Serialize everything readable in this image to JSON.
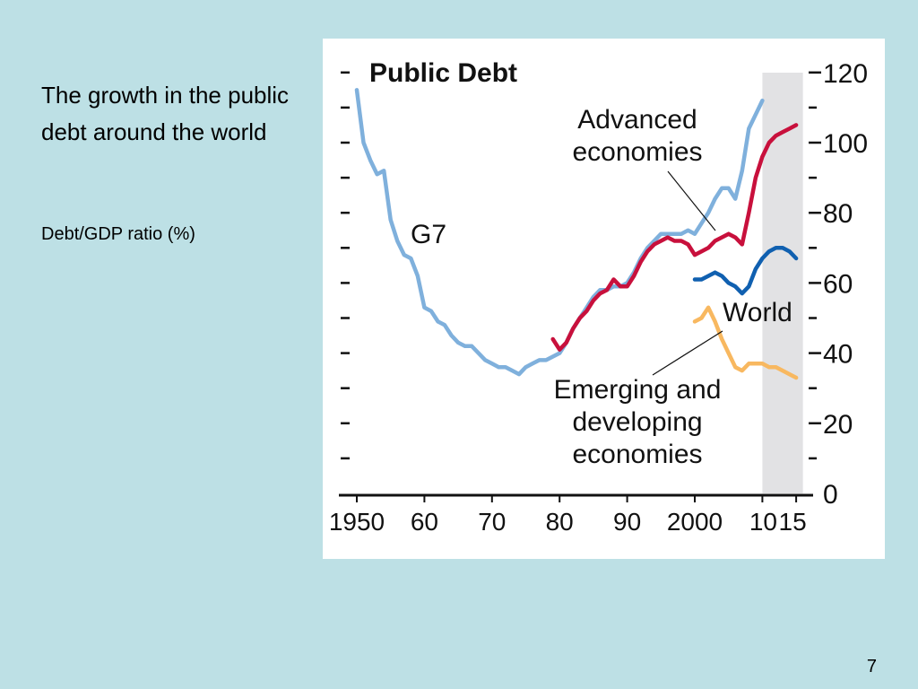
{
  "slide": {
    "title": "The growth in the public debt around the world",
    "subtitle": "Debt/GDP ratio (%)",
    "page_number": "7"
  },
  "chart_data": {
    "type": "line",
    "title": "Public Debt",
    "xlabel": "",
    "ylabel": "",
    "xlim": [
      1950,
      2015
    ],
    "ylim": [
      0,
      120
    ],
    "x_tick_values": [
      1950,
      1960,
      1970,
      1980,
      1990,
      2000,
      2010,
      2015
    ],
    "x_tick_labels": [
      "1950",
      "60",
      "70",
      "80",
      "90",
      "2000",
      "10",
      "15"
    ],
    "y_tick_values": [
      0,
      20,
      40,
      60,
      80,
      100,
      120
    ],
    "y_tick_labels": [
      "0",
      "20",
      "40",
      "60",
      "80",
      "100",
      "120"
    ],
    "y_axis_side": "right",
    "grid": false,
    "projection_shading": {
      "from": 2010,
      "to": 2016,
      "color": "#e2e2e4"
    },
    "series": [
      {
        "name": "G7",
        "color": "#7fb0dc",
        "x": [
          1950,
          1951,
          1952,
          1953,
          1954,
          1955,
          1956,
          1957,
          1958,
          1959,
          1960,
          1961,
          1962,
          1963,
          1964,
          1965,
          1966,
          1967,
          1968,
          1969,
          1970,
          1971,
          1972,
          1973,
          1974,
          1975,
          1976,
          1977,
          1978,
          1979,
          1980,
          1981,
          1982,
          1983,
          1984,
          1985,
          1986,
          1987,
          1988,
          1989,
          1990,
          1991,
          1992,
          1993,
          1994,
          1995,
          1996,
          1997,
          1998,
          1999,
          2000,
          2001,
          2002,
          2003,
          2004,
          2005,
          2006,
          2007,
          2008,
          2009,
          2010
        ],
        "values": [
          115,
          100,
          95,
          91,
          92,
          78,
          72,
          68,
          67,
          62,
          53,
          52,
          49,
          48,
          45,
          43,
          42,
          42,
          40,
          38,
          37,
          36,
          36,
          35,
          34,
          36,
          37,
          38,
          38,
          39,
          40,
          43,
          47,
          50,
          53,
          56,
          58,
          58,
          59,
          59,
          60,
          63,
          67,
          70,
          72,
          74,
          74,
          74,
          74,
          75,
          74,
          77,
          80,
          84,
          87,
          87,
          84,
          92,
          104,
          108,
          112
        ]
      },
      {
        "name": "Advanced economies",
        "color": "#c8103c",
        "x": [
          1979,
          1980,
          1981,
          1982,
          1983,
          1984,
          1985,
          1986,
          1987,
          1988,
          1989,
          1990,
          1991,
          1992,
          1993,
          1994,
          1995,
          1996,
          1997,
          1998,
          1999,
          2000,
          2001,
          2002,
          2003,
          2004,
          2005,
          2006,
          2007,
          2008,
          2009,
          2010,
          2011,
          2012,
          2013,
          2014,
          2015
        ],
        "values": [
          44,
          41,
          43,
          47,
          50,
          52,
          55,
          57,
          58,
          61,
          59,
          59,
          62,
          66,
          69,
          71,
          72,
          73,
          72,
          72,
          71,
          68,
          69,
          70,
          72,
          73,
          74,
          73,
          71,
          80,
          90,
          96,
          100,
          102,
          103,
          104,
          105
        ]
      },
      {
        "name": "World",
        "color": "#1060b0",
        "x": [
          2000,
          2001,
          2002,
          2003,
          2004,
          2005,
          2006,
          2007,
          2008,
          2009,
          2010,
          2011,
          2012,
          2013,
          2014,
          2015
        ],
        "values": [
          61,
          61,
          62,
          63,
          62,
          60,
          59,
          57,
          59,
          64,
          67,
          69,
          70,
          70,
          69,
          67
        ]
      },
      {
        "name": "Emerging and developing economies",
        "color": "#f8b860",
        "x": [
          2000,
          2001,
          2002,
          2003,
          2004,
          2005,
          2006,
          2007,
          2008,
          2009,
          2010,
          2011,
          2012,
          2013,
          2014,
          2015
        ],
        "values": [
          49,
          50,
          53,
          49,
          44,
          40,
          36,
          35,
          37,
          37,
          37,
          36,
          36,
          35,
          34,
          33
        ]
      }
    ],
    "annotations": [
      {
        "text": "G7"
      },
      {
        "text": "Advanced economies"
      },
      {
        "text": "World"
      },
      {
        "text": "Emerging and developing economies"
      }
    ]
  }
}
